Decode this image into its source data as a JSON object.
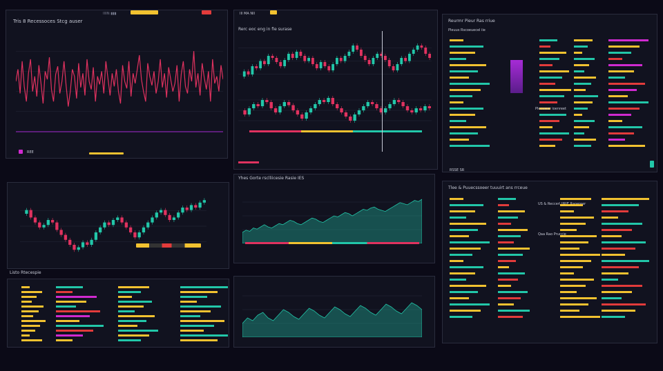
{
  "colors": {
    "bg": "#0b0a17",
    "pink": "#e0325f",
    "teal": "#22c7a9",
    "yellow": "#f2c230",
    "purple": "#a62bd6",
    "magenta": "#d02ad0",
    "red": "#e23b3b",
    "grid": "#25283a"
  },
  "panels": {
    "p1": {
      "title": "Tris 8 Recessoces Stcg auser",
      "toolbar": "IIIIN ▮▮▮",
      "footer": "REE"
    },
    "p2": {
      "title": "Rerc eoc eng in fie surase",
      "toolbar": "III MA NII"
    },
    "p3": {
      "title": "Reurmr Pieur Ras rriue",
      "subtitle": "Pleuus Rscoeuecel iie",
      "section": "Plecuwar ioenreet",
      "footer": "RSSE SR"
    },
    "p4": {
      "title": "",
      "footer": "Listo Rtecespie"
    },
    "p5": {
      "title": "Yhes Gorte rsclliicesie Rasie IES"
    },
    "p6": {
      "title": "Tlee & Puuecssoeer tuuuirt ans rrceue",
      "subtitle": "US & Reccerl IJRIE Raoereer",
      "section": "Qaa Rao Pruccie"
    }
  },
  "chart_data": [
    {
      "type": "line",
      "name": "p1-line",
      "values": [
        50,
        62,
        38,
        70,
        45,
        30,
        58,
        72,
        40,
        55,
        35,
        66,
        48,
        28,
        60,
        52,
        74,
        42,
        30,
        57,
        65,
        38,
        50,
        70,
        46,
        25,
        40,
        62,
        55,
        33,
        68,
        44,
        58,
        36,
        72,
        50,
        42,
        64,
        30,
        55,
        47,
        60,
        38,
        70,
        53,
        36,
        58,
        45,
        62,
        40,
        28,
        66,
        50,
        43,
        70,
        35,
        58,
        48,
        62,
        76,
        52,
        40,
        30,
        68,
        55,
        46,
        60,
        38,
        50,
        72,
        44,
        58,
        34,
        64,
        52,
        40,
        48,
        66,
        30,
        57,
        70,
        45,
        38,
        62,
        50,
        80,
        44,
        58,
        36,
        68,
        54,
        42,
        60,
        30,
        72,
        48,
        55,
        40,
        66,
        52
      ],
      "ylim": [
        0,
        100
      ]
    },
    {
      "type": "candlestick",
      "name": "p2-top",
      "values": [
        40,
        45,
        42,
        50,
        48,
        55,
        52,
        60,
        58,
        54,
        50,
        56,
        62,
        58,
        64,
        60,
        55,
        58,
        52,
        48,
        54,
        50,
        46,
        52,
        58,
        55,
        60,
        64,
        70,
        66,
        60,
        56,
        52,
        58,
        62,
        60,
        56,
        50,
        46,
        52,
        58,
        55,
        62,
        66,
        70,
        68,
        62,
        58
      ],
      "ylim": [
        30,
        80
      ]
    },
    {
      "type": "candlestick",
      "name": "p2-bot",
      "values": [
        50,
        46,
        52,
        56,
        54,
        60,
        58,
        52,
        48,
        54,
        58,
        55,
        50,
        46,
        42,
        48,
        52,
        56,
        60,
        58,
        62,
        56,
        52,
        48,
        44,
        40,
        46,
        50,
        54,
        58,
        56,
        52,
        48,
        52,
        56,
        60,
        58,
        54,
        50,
        48,
        52,
        50,
        54,
        52
      ],
      "ylim": [
        30,
        70
      ]
    },
    {
      "type": "candlestick",
      "name": "p4-candle",
      "values": [
        55,
        58,
        52,
        48,
        44,
        46,
        50,
        48,
        42,
        38,
        34,
        30,
        26,
        28,
        32,
        30,
        34,
        40,
        44,
        48,
        46,
        50,
        52,
        48,
        44,
        40,
        36,
        40,
        44,
        48,
        52,
        56,
        58,
        54,
        50,
        52,
        56,
        60,
        58,
        62,
        60,
        64,
        66
      ],
      "ylim": [
        20,
        70
      ]
    },
    {
      "type": "area",
      "name": "p5-area",
      "values": [
        20,
        24,
        22,
        28,
        26,
        30,
        34,
        30,
        28,
        32,
        36,
        34,
        38,
        42,
        40,
        36,
        34,
        38,
        42,
        46,
        44,
        40,
        38,
        42,
        46,
        50,
        48,
        52,
        56,
        54,
        50,
        54,
        58,
        62,
        60,
        64,
        66,
        62,
        60,
        58,
        62,
        66,
        70,
        74,
        72,
        70,
        74,
        78,
        76,
        80
      ],
      "ylim": [
        0,
        100
      ]
    },
    {
      "type": "area",
      "name": "p7-area",
      "values": [
        10,
        14,
        12,
        16,
        18,
        14,
        12,
        16,
        20,
        18,
        15,
        13,
        17,
        21,
        19,
        16,
        14,
        18,
        22,
        20,
        17,
        15,
        19,
        23,
        21,
        18,
        16,
        20,
        24,
        22,
        19,
        17,
        21,
        25,
        23,
        20
      ],
      "ylim": [
        0,
        40
      ]
    }
  ]
}
